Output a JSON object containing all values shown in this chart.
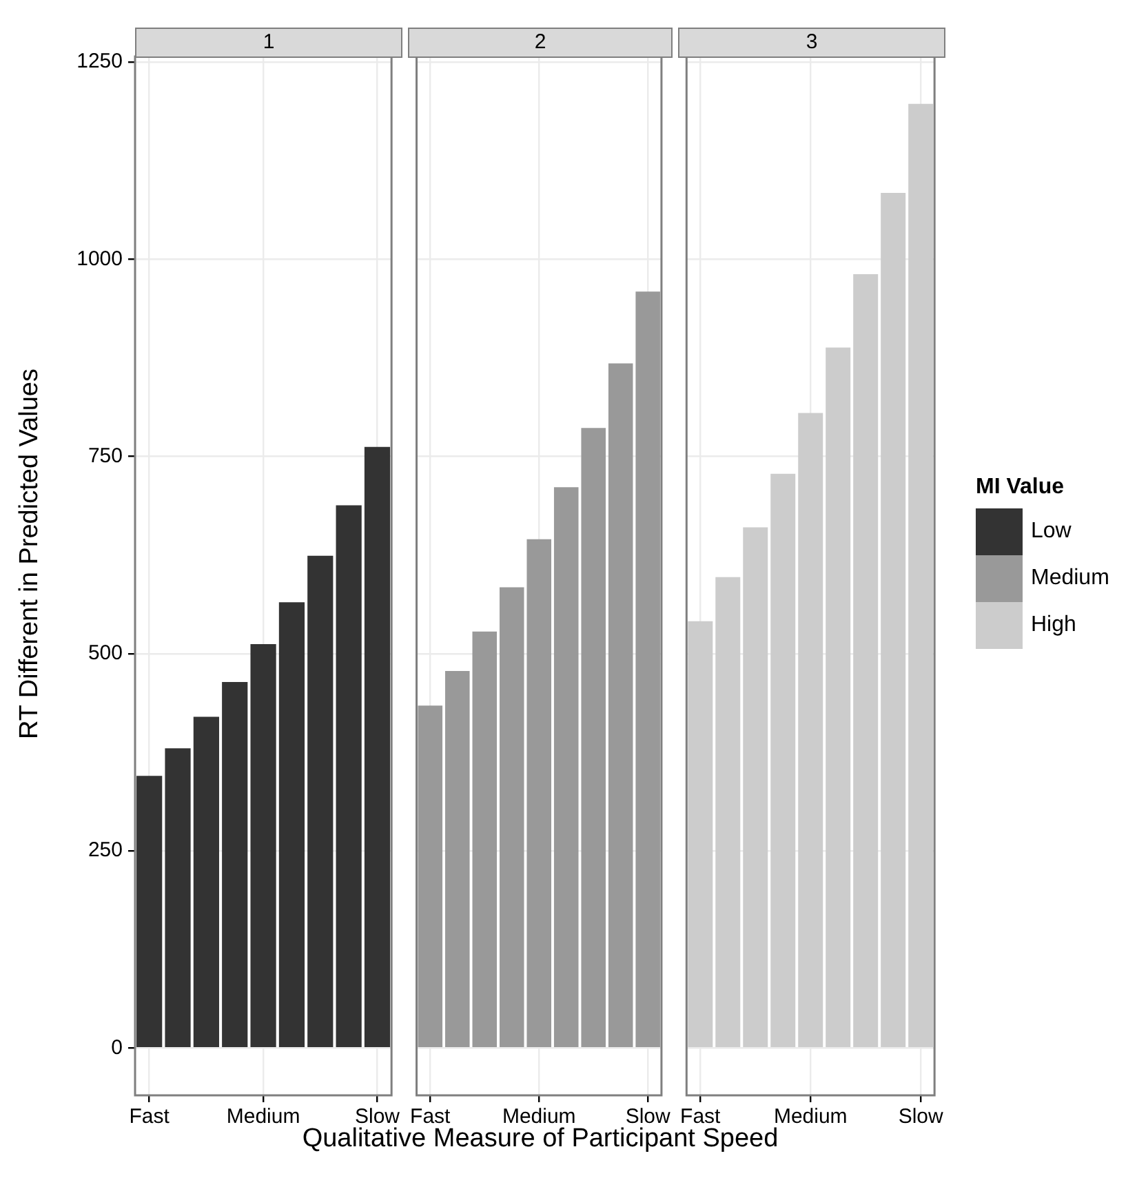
{
  "chart_data": [
    {
      "type": "bar",
      "title": "1",
      "ylabel": "RT Different in Predicted Values",
      "categories": [
        "Fast",
        null,
        null,
        null,
        "Medium",
        null,
        null,
        null,
        "Slow"
      ],
      "series": [
        {
          "name": "Low",
          "color": "#333333",
          "values": [
            345,
            380,
            420,
            464,
            512,
            565,
            624,
            688,
            762
          ]
        }
      ],
      "ylim": [
        -60,
        1257
      ],
      "yticks": [
        0,
        250,
        500,
        750,
        1000,
        1250
      ],
      "grid": true
    },
    {
      "type": "bar",
      "title": "2",
      "xlabel": "Qualitative Measure of Participant Speed",
      "categories": [
        "Fast",
        null,
        null,
        null,
        "Medium",
        null,
        null,
        null,
        "Slow"
      ],
      "series": [
        {
          "name": "Medium",
          "color": "#999999",
          "values": [
            434,
            478,
            528,
            584,
            645,
            711,
            786,
            868,
            959
          ]
        }
      ],
      "ylim": [
        -60,
        1257
      ],
      "yticks": [
        0,
        250,
        500,
        750,
        1000,
        1250
      ],
      "grid": true,
      "tick_labels": "x"
    },
    {
      "type": "bar",
      "title": "3",
      "legend": "right",
      "legend_title": "MI Value",
      "categories": [
        "Fast",
        null,
        null,
        null,
        "Medium",
        null,
        null,
        null,
        "Slow"
      ],
      "series": [
        {
          "name": "High",
          "color": "#cccccc",
          "values": [
            541,
            597,
            660,
            728,
            805,
            888,
            981,
            1084,
            1197
          ]
        }
      ],
      "ylim": [
        -60,
        1257
      ],
      "yticks": [
        0,
        250,
        500,
        750,
        1000,
        1250
      ],
      "grid": true,
      "tick_labels": "x"
    }
  ]
}
